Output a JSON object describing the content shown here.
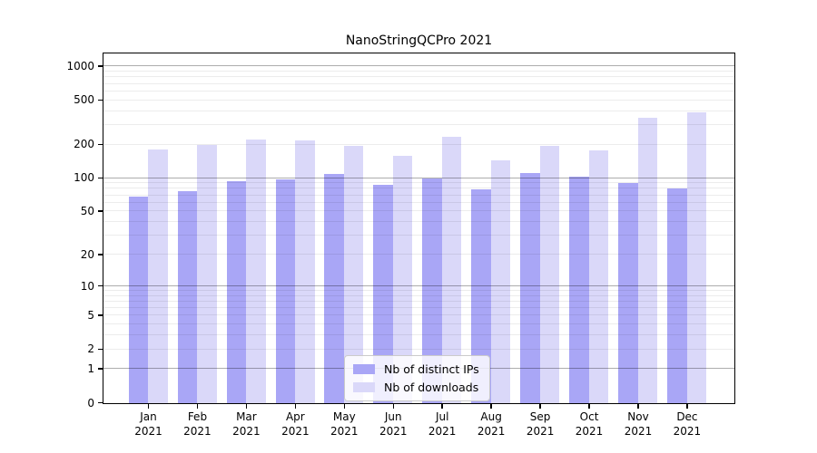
{
  "title": "NanoStringQCPro 2021",
  "chart_data": {
    "type": "bar",
    "title": "NanoStringQCPro 2021",
    "categories": [
      "Jan",
      "Feb",
      "Mar",
      "Apr",
      "May",
      "Jun",
      "Jul",
      "Aug",
      "Sep",
      "Oct",
      "Nov",
      "Dec"
    ],
    "year_label": "2021",
    "series": [
      {
        "name": "Nb of distinct IPs",
        "color": "#a9a6f6",
        "values": [
          68,
          77,
          94,
          98,
          110,
          88,
          100,
          80,
          112,
          103,
          91,
          81
        ]
      },
      {
        "name": "Nb of downloads",
        "color": "#dad8f9",
        "values": [
          182,
          199,
          222,
          218,
          197,
          158,
          236,
          145,
          196,
          177,
          347,
          389
        ]
      }
    ],
    "xlabel": "",
    "ylabel": "",
    "yscale": "log1p",
    "ylim": [
      0,
      1290
    ],
    "yticks": [
      0,
      1,
      2,
      5,
      10,
      20,
      50,
      100,
      200,
      500,
      1000
    ],
    "y_major_gridlines": [
      1,
      10,
      100,
      1000
    ],
    "y_minor_gridlines": [
      2,
      3,
      4,
      5,
      6,
      7,
      8,
      9,
      20,
      30,
      40,
      50,
      60,
      70,
      80,
      90,
      200,
      300,
      400,
      500,
      600,
      700,
      800,
      900
    ],
    "grid": true,
    "legend_position": "lower center inside"
  }
}
